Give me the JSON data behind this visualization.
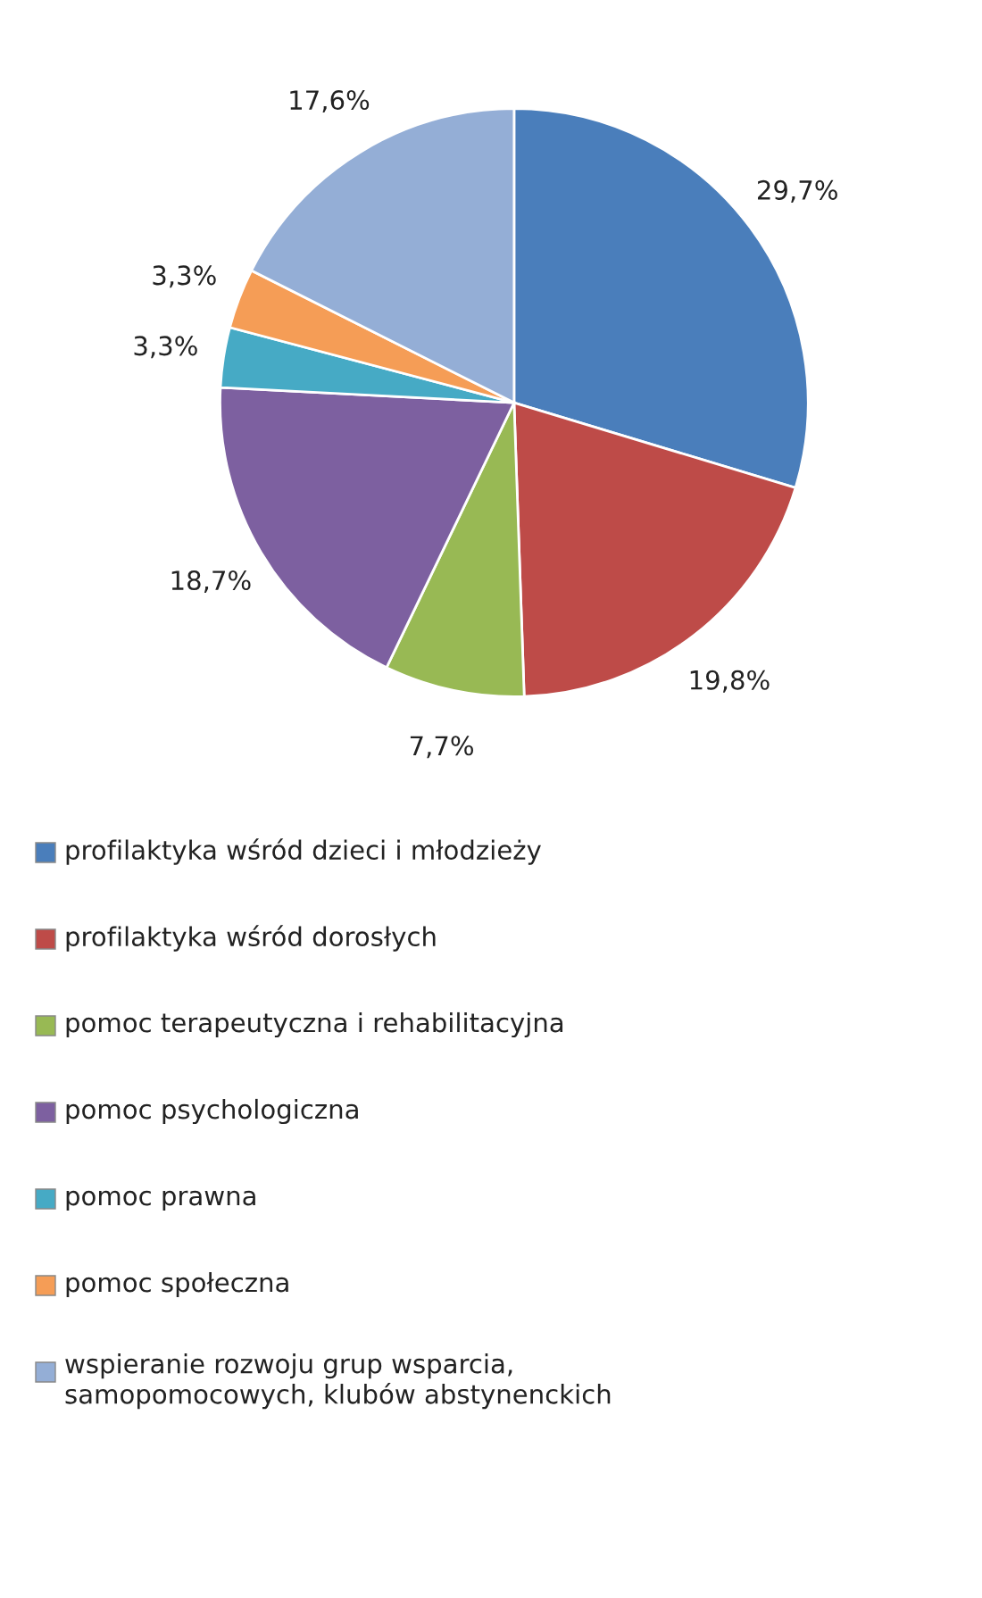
{
  "chart_data": {
    "type": "pie",
    "categories": [
      "profilaktyka wśród dzieci i młodzieży",
      "profilaktyka wśród dorosłych",
      "pomoc terapeutyczna i rehabilitacyjna",
      "pomoc psychologiczna",
      "pomoc prawna",
      "pomoc społeczna",
      "wspieranie rozwoju grup wsparcia,\nsamopomocowych, klubów abstynenckich"
    ],
    "values": [
      29.7,
      19.8,
      7.7,
      18.7,
      3.3,
      3.3,
      17.6
    ],
    "value_labels": [
      "29,7%",
      "19,8%",
      "7,7%",
      "18,7%",
      "3,3%",
      "3,3%",
      "17,6%"
    ],
    "colors": [
      "#4a7ebb",
      "#be4b48",
      "#98b954",
      "#7d60a0",
      "#46aac5",
      "#f59d56",
      "#94aed6"
    ],
    "legend": "bottom"
  }
}
